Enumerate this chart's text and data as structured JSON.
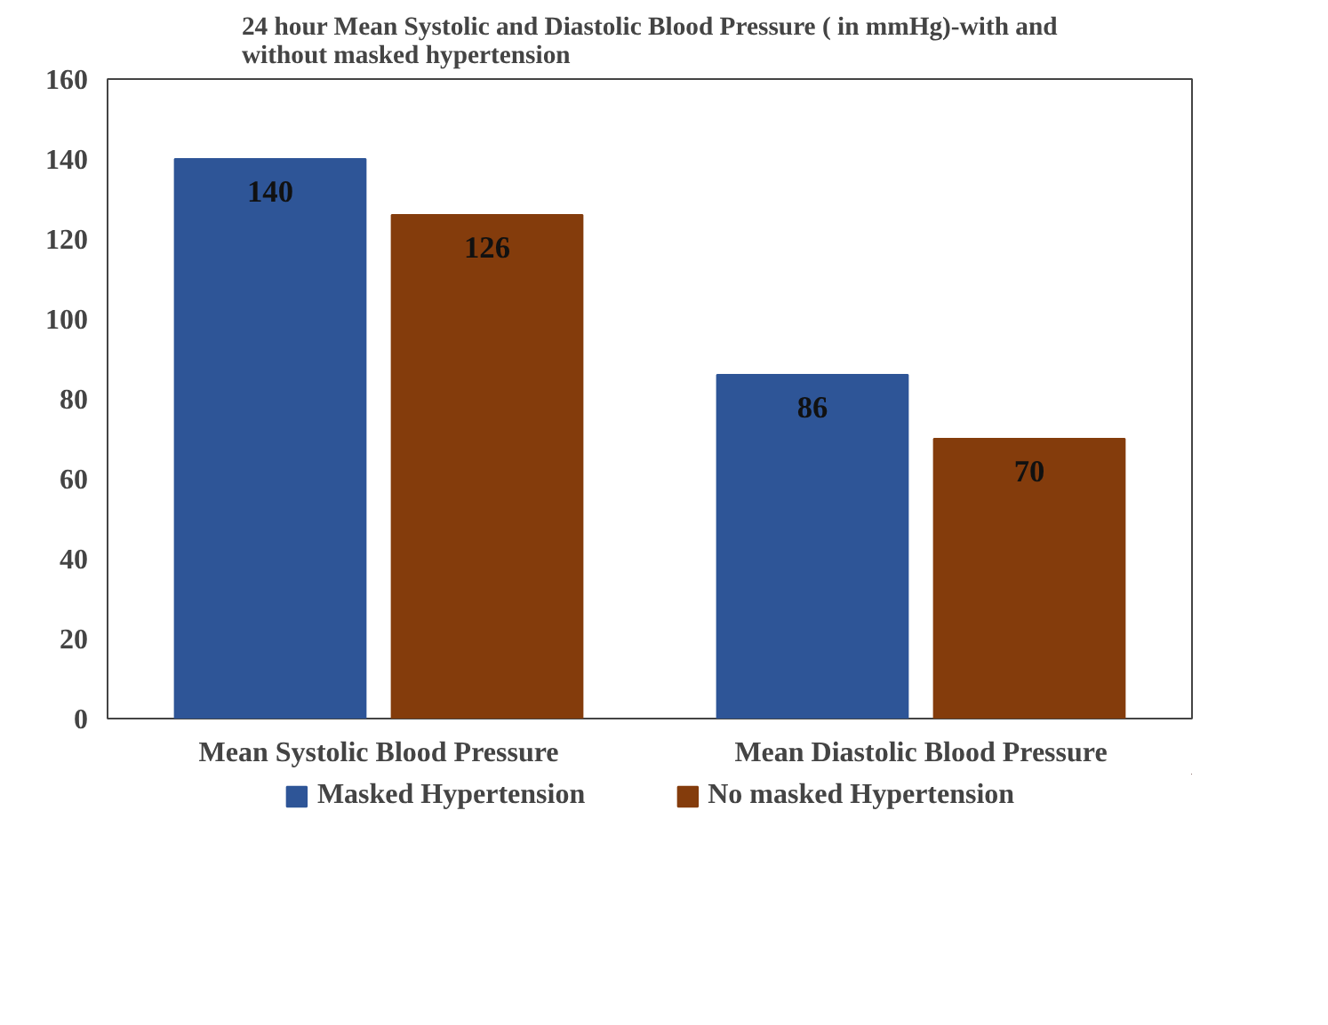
{
  "chart_data": {
    "type": "bar",
    "title": "24 hour Mean Systolic and Diastolic Blood Pressure ( in mmHg)-with and without masked hypertension",
    "categories": [
      "Mean Systolic Blood Pressure",
      "Mean Diastolic Blood Pressure"
    ],
    "series": [
      {
        "name": "Masked Hypertension",
        "color": "#2e5597",
        "values": [
          140,
          86
        ]
      },
      {
        "name": "No masked Hypertension",
        "color": "#843c0c",
        "values": [
          126,
          70
        ]
      }
    ],
    "ylim": [
      0,
      160
    ],
    "yticks": [
      0,
      20,
      40,
      60,
      80,
      100,
      120,
      140,
      160
    ],
    "grid": false,
    "legend": "bottom",
    "data_labels": true
  }
}
